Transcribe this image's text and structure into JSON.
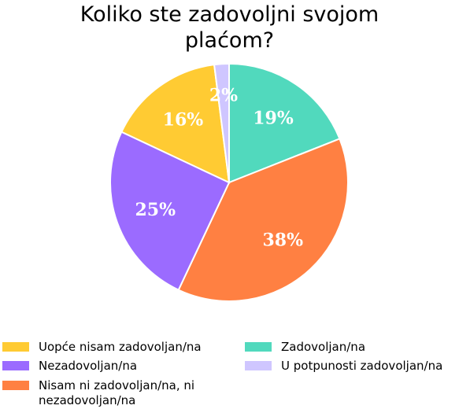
{
  "chart_data": {
    "type": "pie",
    "title_lines": [
      "Koliko ste zadovoljni svojom",
      "plaćom?"
    ],
    "slices": [
      {
        "name": "Zadovoljan/na",
        "value": 19,
        "label": "19%",
        "color": "#51d9bd"
      },
      {
        "name": "Nisam ni zadovoljan/na, ni nezadovoljan/na",
        "value": 38,
        "label": "38%",
        "color": "#ff8042"
      },
      {
        "name": "Nezadovoljan/na",
        "value": 25,
        "label": "25%",
        "color": "#9b6bff"
      },
      {
        "name": "Uopće nisam zadovoljan/na",
        "value": 16,
        "label": "16%",
        "color": "#ffcb33"
      },
      {
        "name": "U potpunosti zadovoljan/na",
        "value": 2,
        "label": "2%",
        "color": "#cfc6ff"
      }
    ],
    "legend_placement": "bottom"
  },
  "legend": [
    {
      "label": "Uopće nisam zadovoljan/na",
      "color": "#ffcb33"
    },
    {
      "label": "Nezadovoljan/na",
      "color": "#9b6bff"
    },
    {
      "label": "Nisam ni zadovoljan/na, ni nezadovoljan/na",
      "color": "#ff8042"
    },
    {
      "label": "Zadovoljan/na",
      "color": "#51d9bd"
    },
    {
      "label": "U potpunosti zadovoljan/na",
      "color": "#cfc6ff"
    }
  ]
}
